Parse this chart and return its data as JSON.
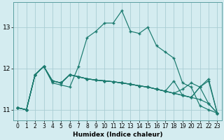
{
  "xlabel": "Humidex (Indice chaleur)",
  "bg_color": "#d4ecf0",
  "grid_color": "#aacdd4",
  "line_color": "#1a7a6e",
  "xlim": [
    -0.5,
    23.5
  ],
  "ylim": [
    10.75,
    13.6
  ],
  "yticks": [
    11,
    12,
    13
  ],
  "xticks": [
    0,
    1,
    2,
    3,
    4,
    5,
    6,
    7,
    8,
    9,
    10,
    11,
    12,
    13,
    14,
    15,
    16,
    17,
    18,
    19,
    20,
    21,
    22,
    23
  ],
  "series": [
    [
      11.05,
      11.0,
      11.85,
      12.05,
      11.65,
      11.6,
      11.55,
      12.05,
      12.75,
      12.9,
      13.1,
      13.1,
      13.4,
      12.9,
      12.85,
      13.0,
      12.55,
      12.4,
      12.25,
      11.65,
      11.55,
      11.1,
      11.0,
      10.92
    ],
    [
      11.05,
      11.0,
      11.85,
      12.05,
      11.7,
      11.65,
      11.85,
      11.8,
      11.75,
      11.72,
      11.7,
      11.68,
      11.65,
      11.62,
      11.58,
      11.55,
      11.5,
      11.45,
      11.4,
      11.35,
      11.3,
      11.25,
      11.15,
      10.92
    ],
    [
      11.05,
      11.0,
      11.85,
      12.05,
      11.7,
      11.65,
      11.85,
      11.8,
      11.75,
      11.72,
      11.7,
      11.68,
      11.65,
      11.62,
      11.58,
      11.55,
      11.5,
      11.45,
      11.4,
      11.5,
      11.65,
      11.55,
      11.15,
      10.92
    ],
    [
      11.05,
      11.0,
      11.85,
      12.05,
      11.7,
      11.65,
      11.85,
      11.8,
      11.75,
      11.72,
      11.7,
      11.68,
      11.65,
      11.62,
      11.58,
      11.55,
      11.5,
      11.45,
      11.7,
      11.35,
      11.3,
      11.55,
      11.7,
      10.92
    ],
    [
      11.05,
      11.0,
      11.85,
      12.05,
      11.7,
      11.65,
      11.85,
      11.8,
      11.75,
      11.72,
      11.7,
      11.68,
      11.65,
      11.62,
      11.58,
      11.55,
      11.5,
      11.45,
      11.4,
      11.35,
      11.3,
      11.55,
      11.75,
      10.92
    ]
  ]
}
